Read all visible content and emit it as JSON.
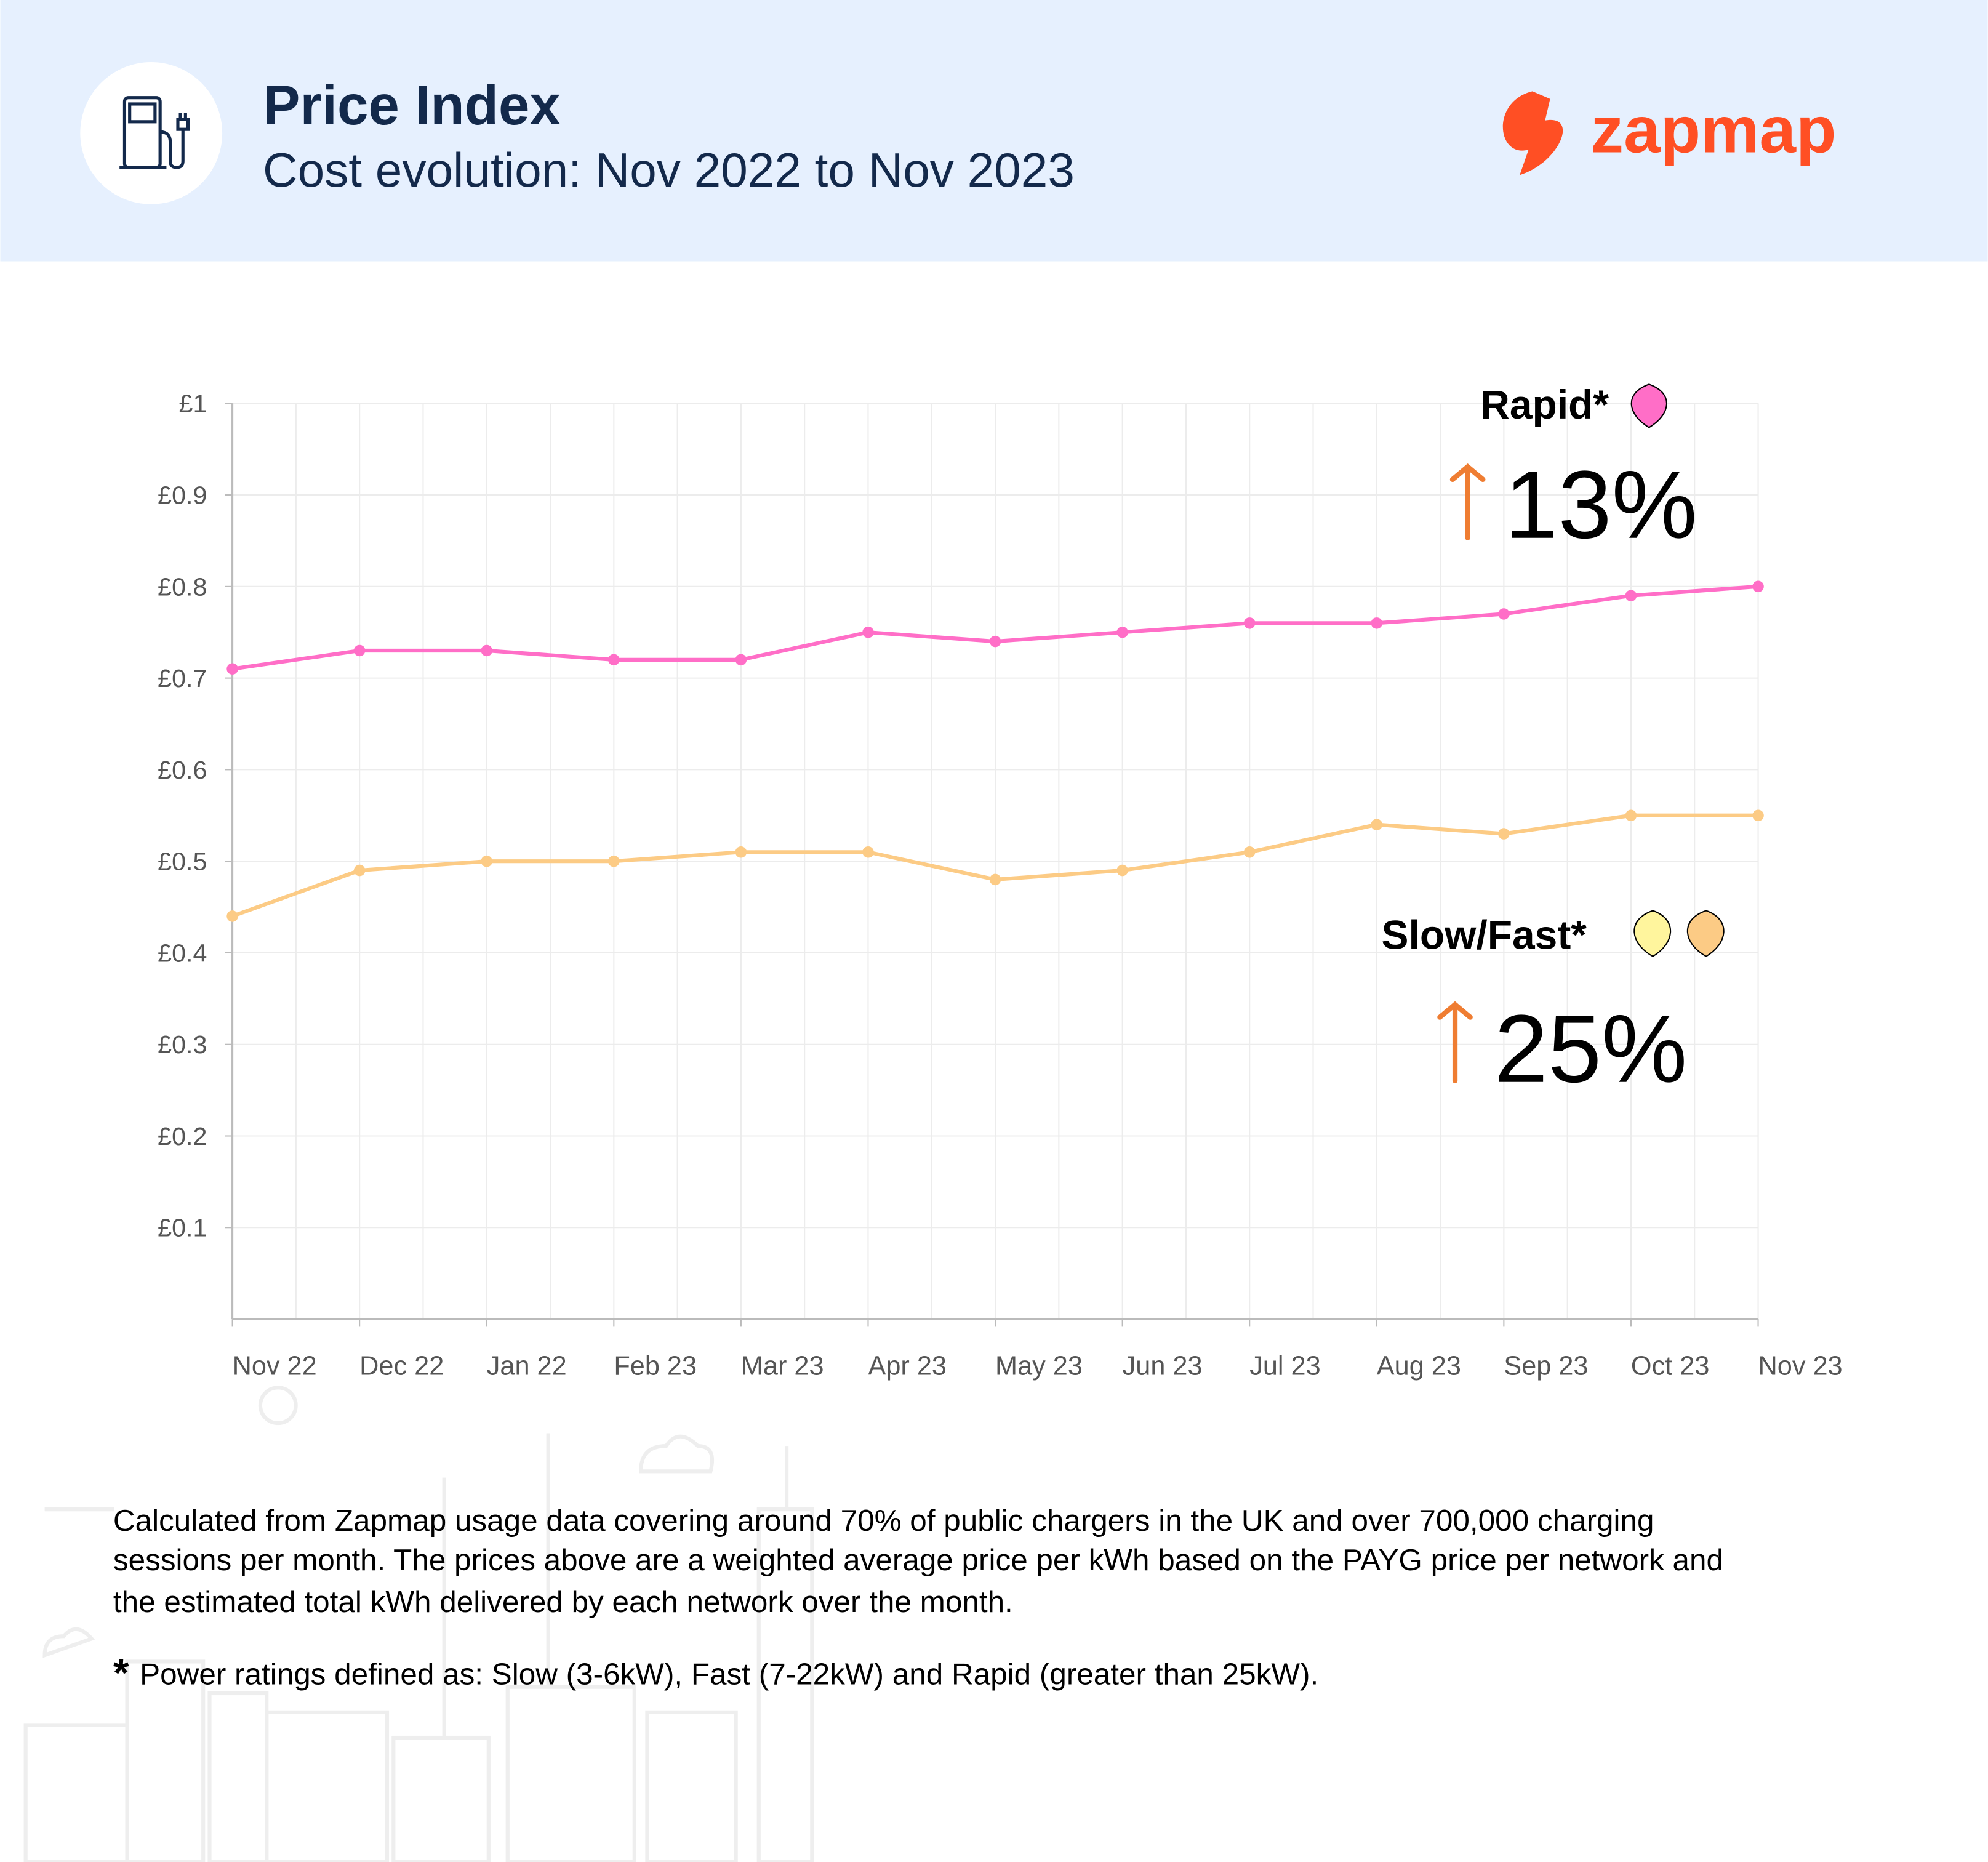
{
  "header": {
    "title": "Price Index",
    "subtitle": "Cost evolution: Nov 2022 to Nov 2023",
    "brand": "zapmap",
    "icon": "ev-charger-pump-icon",
    "colors": {
      "background": "#e6f0fe",
      "title": "#13294b",
      "brand": "#ff4f24"
    }
  },
  "chart_data": {
    "type": "line",
    "categories": [
      "Nov 22",
      "Dec 22",
      "Jan 22",
      "Feb 23",
      "Mar 23",
      "Apr 23",
      "May 23",
      "Jun 23",
      "Jul 23",
      "Aug 23",
      "Sep 23",
      "Oct 23",
      "Nov 23"
    ],
    "y_ticks": [
      "£0.1",
      "£0.2",
      "£0.3",
      "£0.4",
      "£0.5",
      "£0.6",
      "£0.7",
      "£0.8",
      "£0.9",
      "£1"
    ],
    "y_tick_values": [
      0.1,
      0.2,
      0.3,
      0.4,
      0.5,
      0.6,
      0.7,
      0.8,
      0.9,
      1.0
    ],
    "ylim": [
      0,
      1
    ],
    "grid": true,
    "series": [
      {
        "name": "Rapid*",
        "color": "#ff6ec7",
        "values": [
          0.71,
          0.73,
          0.73,
          0.72,
          0.72,
          0.75,
          0.74,
          0.75,
          0.76,
          0.76,
          0.77,
          0.79,
          0.8
        ]
      },
      {
        "name": "Slow/Fast*",
        "color": "#fccb85",
        "values": [
          0.44,
          0.49,
          0.5,
          0.5,
          0.51,
          0.51,
          0.48,
          0.49,
          0.51,
          0.54,
          0.53,
          0.55,
          0.55
        ]
      }
    ],
    "annotations": [
      {
        "label": "Rapid*",
        "change": "13%",
        "direction": "up",
        "pin_colors": [
          "#ff6ec7"
        ]
      },
      {
        "label": "Slow/Fast*",
        "change": "25%",
        "direction": "up",
        "pin_colors": [
          "#fff59d",
          "#fccb85"
        ]
      }
    ],
    "arrow_color": "#ef7d32"
  },
  "footer": {
    "note_lines": [
      "Calculated from Zapmap usage data covering around 70% of public chargers in the UK and over 700,000 charging",
      "sessions per month. The prices above are a weighted average price per kWh based on the PAYG price per network and",
      "the estimated total kWh delivered by each network over the month."
    ],
    "asterisk": "*",
    "definition": "Power ratings defined as: Slow (3-6kW), Fast (7-22kW) and Rapid (greater than 25kW)."
  }
}
